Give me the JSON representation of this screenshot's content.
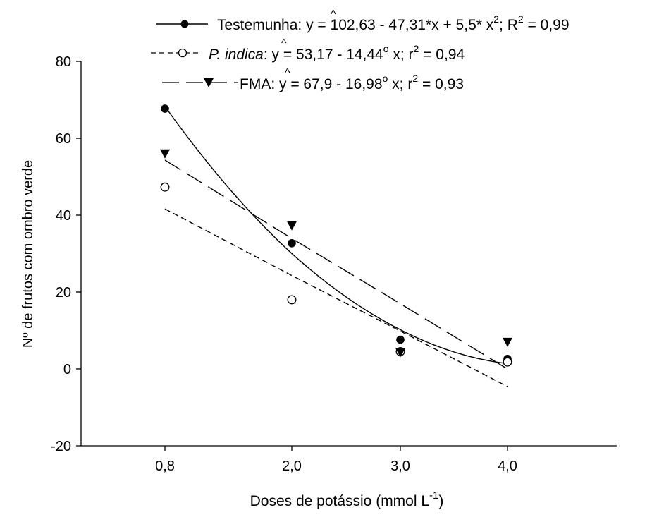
{
  "chart_data": {
    "type": "scatter",
    "xlabel": "Doses de potássio (mmol L",
    "xlabel_sup": "-1",
    "xlabel_end": ")",
    "ylabel": "Nº de frutos com ombro verde",
    "ylim": [
      -20,
      80
    ],
    "yticks": [
      -20,
      0,
      20,
      40,
      60,
      80
    ],
    "categories": [
      "0,8",
      "2,0",
      "3,0",
      "4,0"
    ],
    "x": [
      0.8,
      2.0,
      3.0,
      4.0
    ],
    "xlim": [
      0.0,
      5.0
    ],
    "legend_position": "top",
    "series": [
      {
        "name": "Testemunha",
        "marker": "filled-circle",
        "line": "solid",
        "values": [
          67.7,
          32.7,
          7.6,
          2.6
        ],
        "equation": "y = 102,63 - 47,31*x + 5,5* x",
        "eq_sup": "2",
        "r2_label": "; R",
        "r2_sup": "2",
        "r2_value": " = 0,99",
        "fit": {
          "kind": "quadratic",
          "a": 102.63,
          "b": -47.31,
          "c": 5.5
        }
      },
      {
        "name": "P. indica",
        "marker": "open-circle",
        "line": "short-dash",
        "values": [
          47.3,
          18.0,
          4.5,
          1.8
        ],
        "equation": "y = 53,17 - 14,44",
        "eq_sup": "o",
        "eq_after": " x",
        "r2_label": "; r",
        "r2_sup": "2",
        "r2_value": " = 0,94",
        "fit": {
          "kind": "linear",
          "a": 53.17,
          "b": -14.44
        }
      },
      {
        "name": "FMA",
        "marker": "filled-triangle-down",
        "line": "long-dash",
        "values": [
          56.0,
          37.3,
          4.3,
          7.0
        ],
        "equation": "y = 67,9 - 16,98",
        "eq_sup": "o",
        "eq_after": " x",
        "r2_label": "; r",
        "r2_sup": "2",
        "r2_value": " = 0,93",
        "fit": {
          "kind": "linear",
          "a": 67.9,
          "b": -16.98
        }
      }
    ],
    "colors": {
      "ink": "#000000",
      "background": "#ffffff"
    }
  }
}
